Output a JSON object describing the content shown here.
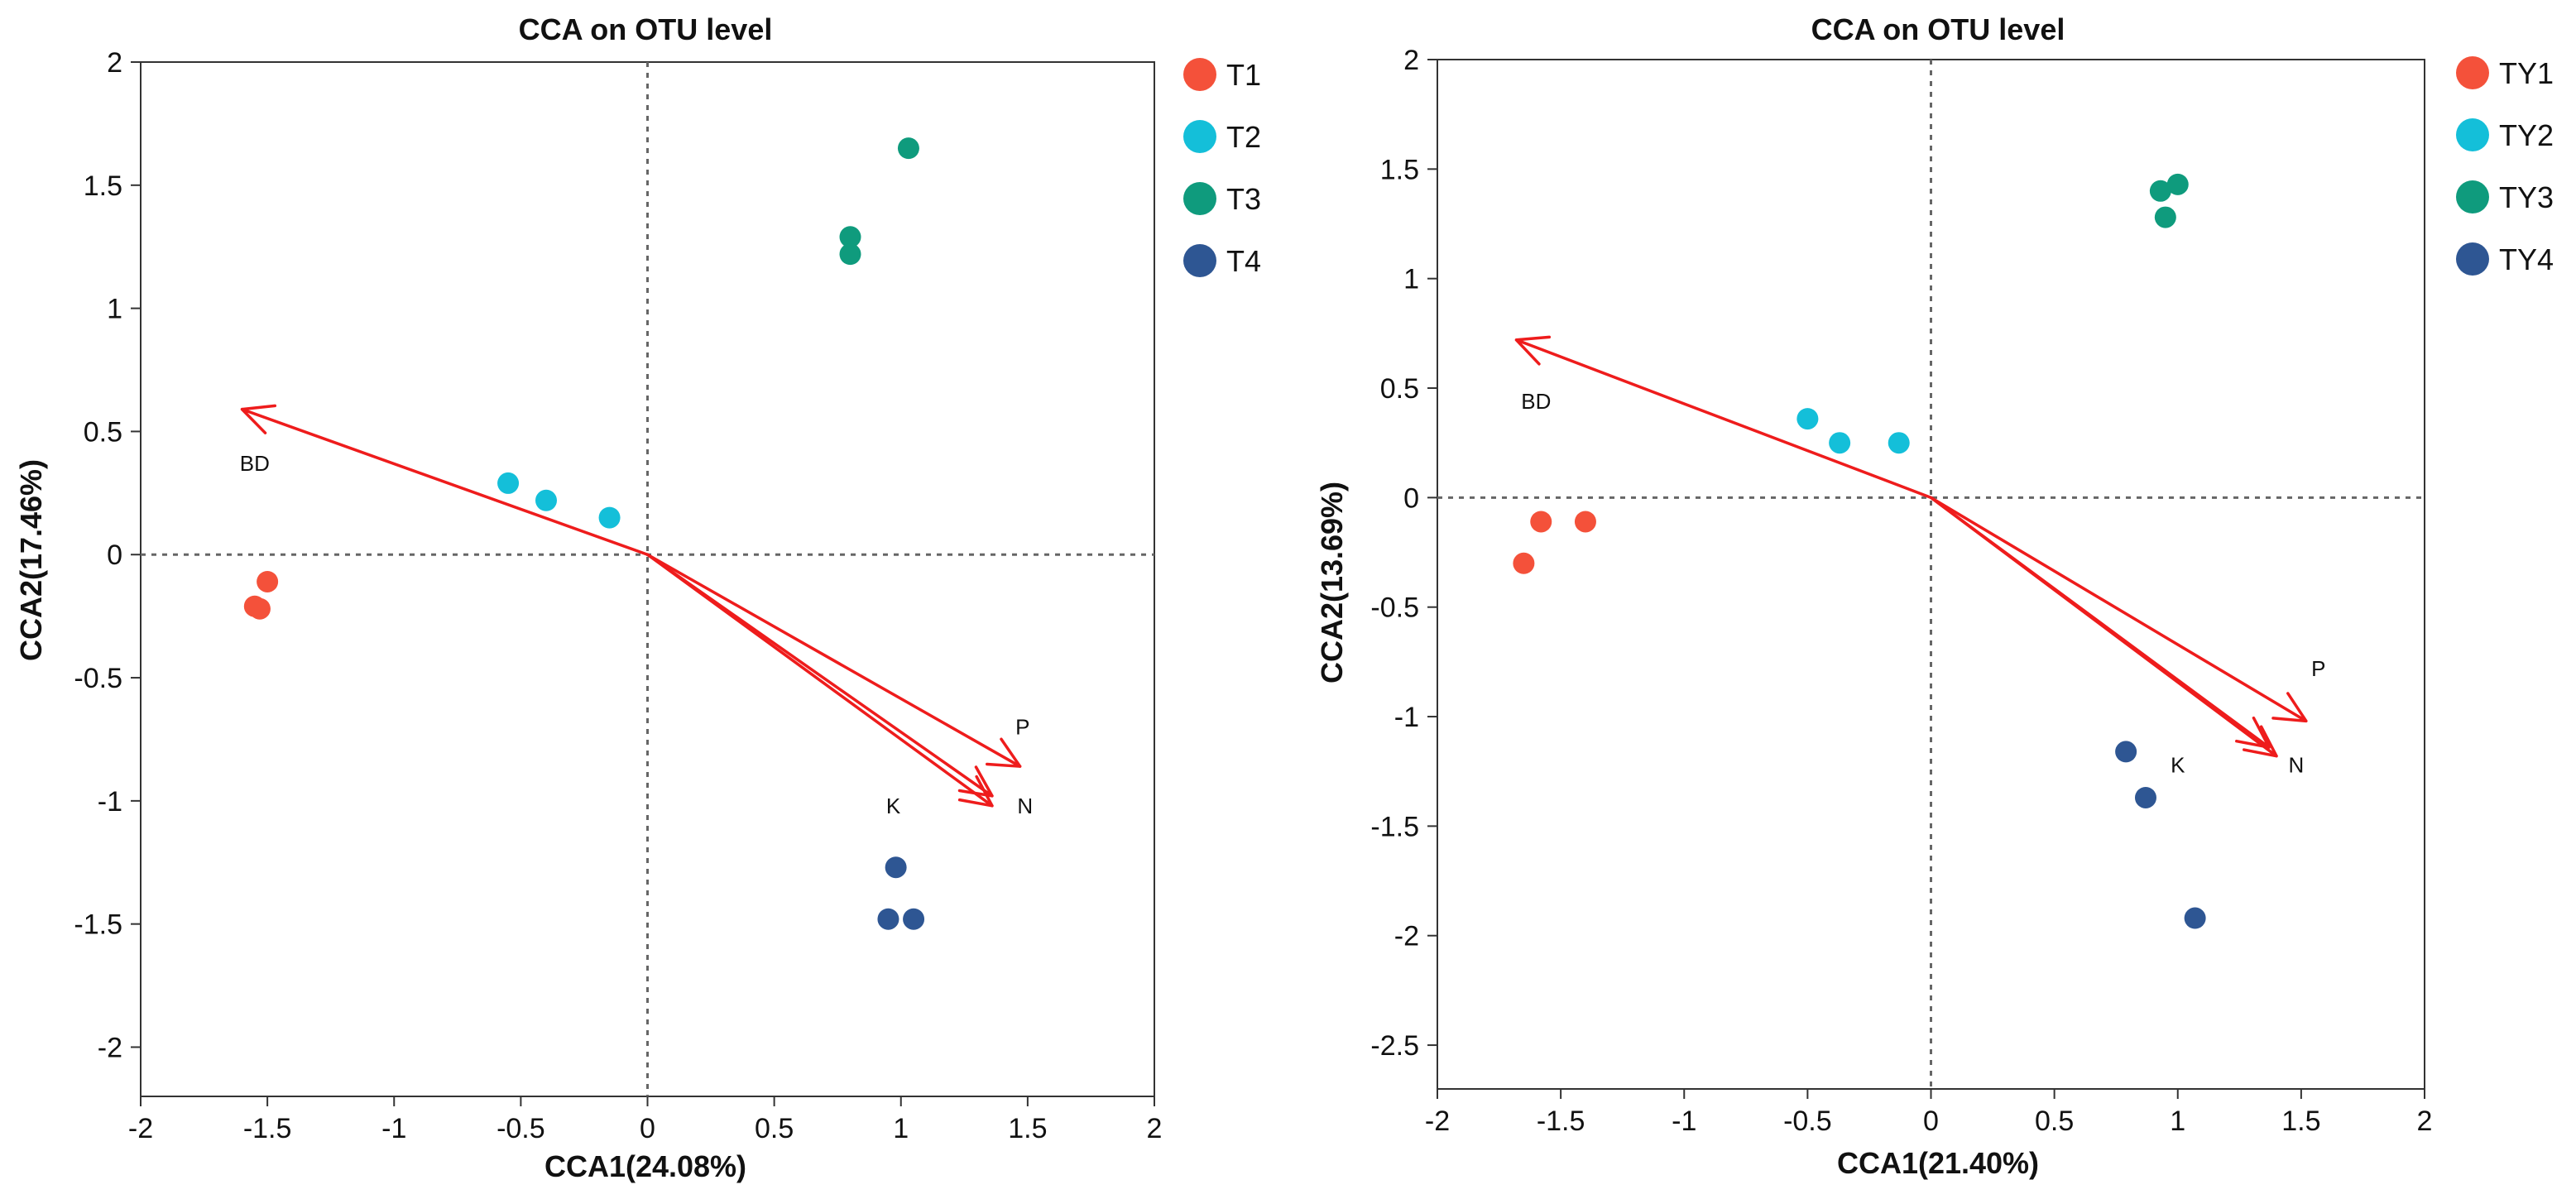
{
  "chart_data": [
    {
      "type": "scatter",
      "title": "CCA on OTU level",
      "xlabel": "CCA1(24.08%)",
      "ylabel": "CCA2(17.46%)",
      "xlim": [
        -2,
        2
      ],
      "ylim": [
        -2.2,
        2
      ],
      "xticks": [
        -2,
        -1.5,
        -1,
        -0.5,
        0,
        0.5,
        1,
        1.5,
        2
      ],
      "xtick_labels": [
        "-2",
        "-1.5",
        "-1",
        "-0.5",
        "0",
        "0.5",
        "1",
        "1.5",
        "2"
      ],
      "yticks": [
        -2,
        -1.5,
        -1,
        -0.5,
        0,
        0.5,
        1,
        1.5,
        2
      ],
      "ytick_labels": [
        "-2",
        "-1.5",
        "-1",
        "-0.5",
        "0",
        "0.5",
        "1",
        "1.5",
        "2"
      ],
      "legend_position": "right",
      "series": [
        {
          "name": "T1",
          "color": "#f4513a",
          "points": [
            [
              -1.55,
              -0.21
            ],
            [
              -1.53,
              -0.22
            ],
            [
              -1.5,
              -0.11
            ]
          ]
        },
        {
          "name": "T2",
          "color": "#14bfd9",
          "points": [
            [
              -0.55,
              0.29
            ],
            [
              -0.4,
              0.22
            ],
            [
              -0.15,
              0.15
            ]
          ]
        },
        {
          "name": "T3",
          "color": "#0f9b7d",
          "points": [
            [
              0.8,
              1.29
            ],
            [
              0.8,
              1.22
            ],
            [
              1.03,
              1.65
            ]
          ]
        },
        {
          "name": "T4",
          "color": "#2e5693",
          "points": [
            [
              0.98,
              -1.27
            ],
            [
              0.95,
              -1.48
            ],
            [
              1.05,
              -1.48
            ]
          ]
        }
      ],
      "arrows": [
        {
          "label": "BD",
          "x": -1.6,
          "y": 0.59,
          "label_x": -1.55,
          "label_y": 0.37
        },
        {
          "label": "P",
          "x": 1.47,
          "y": -0.86,
          "label_x": 1.48,
          "label_y": -0.7
        },
        {
          "label": "N",
          "x": 1.36,
          "y": -1.02,
          "label_x": 1.49,
          "label_y": -1.02
        },
        {
          "label": "K",
          "x": 1.36,
          "y": -0.98,
          "label_x": 0.97,
          "label_y": -1.02
        }
      ]
    },
    {
      "type": "scatter",
      "title": "CCA on OTU level",
      "xlabel": "CCA1(21.40%)",
      "ylabel": "CCA2(13.69%)",
      "xlim": [
        -2,
        2
      ],
      "ylim": [
        -2.7,
        2
      ],
      "xticks": [
        -2,
        -1.5,
        -1,
        -0.5,
        0,
        0.5,
        1,
        1.5,
        2
      ],
      "xtick_labels": [
        "-2",
        "-1.5",
        "-1",
        "-0.5",
        "0",
        "0.5",
        "1",
        "1.5",
        "2"
      ],
      "yticks": [
        -2.5,
        -2,
        -1.5,
        -1,
        -0.5,
        0,
        0.5,
        1,
        1.5,
        2
      ],
      "ytick_labels": [
        "-2.5",
        "-2",
        "-1.5",
        "-1",
        "-0.5",
        "0",
        "0.5",
        "1",
        "1.5",
        "2"
      ],
      "legend_position": "right",
      "series": [
        {
          "name": "TY1",
          "color": "#f4513a",
          "points": [
            [
              -1.65,
              -0.3
            ],
            [
              -1.58,
              -0.11
            ],
            [
              -1.4,
              -0.11
            ]
          ]
        },
        {
          "name": "TY2",
          "color": "#14bfd9",
          "points": [
            [
              -0.5,
              0.36
            ],
            [
              -0.37,
              0.25
            ],
            [
              -0.13,
              0.25
            ]
          ]
        },
        {
          "name": "TY3",
          "color": "#0f9b7d",
          "points": [
            [
              0.93,
              1.4
            ],
            [
              1.0,
              1.43
            ],
            [
              0.95,
              1.28
            ]
          ]
        },
        {
          "name": "TY4",
          "color": "#2e5693",
          "points": [
            [
              0.79,
              -1.16
            ],
            [
              0.87,
              -1.37
            ],
            [
              1.07,
              -1.92
            ]
          ]
        }
      ],
      "arrows": [
        {
          "label": "BD",
          "x": -1.68,
          "y": 0.72,
          "label_x": -1.6,
          "label_y": 0.44
        },
        {
          "label": "P",
          "x": 1.52,
          "y": -1.02,
          "label_x": 1.57,
          "label_y": -0.78
        },
        {
          "label": "N",
          "x": 1.4,
          "y": -1.18,
          "label_x": 1.48,
          "label_y": -1.22
        },
        {
          "label": "K",
          "x": 1.37,
          "y": -1.14,
          "label_x": 1.0,
          "label_y": -1.22
        }
      ]
    }
  ]
}
